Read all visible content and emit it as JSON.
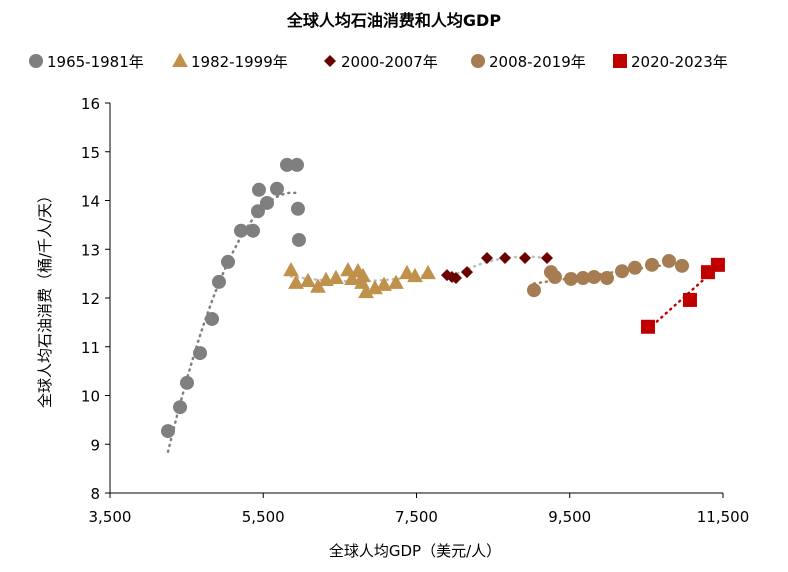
{
  "chart_data": {
    "type": "scatter",
    "title": "全球人均石油消费和人均GDP",
    "xlabel": "全球人均GDP（美元/人）",
    "ylabel": "全球人均石油消费（桶/千人/天）",
    "xlim": [
      3500,
      11500
    ],
    "ylim": [
      8,
      16
    ],
    "xticks": [
      3500,
      5500,
      7500,
      9500,
      11500
    ],
    "xtick_labels": [
      "3,500",
      "5,500",
      "7,500",
      "9,500",
      "11,500"
    ],
    "yticks": [
      8,
      9,
      10,
      11,
      12,
      13,
      14,
      15,
      16
    ],
    "grid": false,
    "legend": "top",
    "series": [
      {
        "name": "1965-1981年",
        "marker": "circle",
        "color": "#7f7f7f",
        "trend_color": "#7f7f7f",
        "points": [
          [
            4257,
            9.27
          ],
          [
            4414,
            9.76
          ],
          [
            4505,
            10.26
          ],
          [
            4675,
            10.87
          ],
          [
            4831,
            11.57
          ],
          [
            4922,
            12.33
          ],
          [
            5040,
            12.74
          ],
          [
            5210,
            13.38
          ],
          [
            5366,
            13.38
          ],
          [
            5431,
            13.78
          ],
          [
            5444,
            14.22
          ],
          [
            5549,
            13.95
          ],
          [
            5679,
            14.24
          ],
          [
            5810,
            14.73
          ],
          [
            5940,
            14.73
          ],
          [
            5953,
            13.83
          ],
          [
            5966,
            13.19
          ]
        ]
      },
      {
        "name": "1982-1999年",
        "marker": "triangle",
        "color": "#c0914a",
        "trend_color": "#bfbfbf",
        "points": [
          [
            5862,
            12.57
          ],
          [
            5927,
            12.31
          ],
          [
            6084,
            12.35
          ],
          [
            6214,
            12.23
          ],
          [
            6319,
            12.37
          ],
          [
            6449,
            12.41
          ],
          [
            6606,
            12.57
          ],
          [
            6658,
            12.39
          ],
          [
            6736,
            12.55
          ],
          [
            6789,
            12.31
          ],
          [
            6802,
            12.45
          ],
          [
            6841,
            12.12
          ],
          [
            6958,
            12.2
          ],
          [
            7076,
            12.27
          ],
          [
            7232,
            12.31
          ],
          [
            7376,
            12.51
          ],
          [
            7480,
            12.45
          ],
          [
            7650,
            12.51
          ]
        ]
      },
      {
        "name": "2000-2007年",
        "marker": "diamond",
        "color": "#6b0000",
        "trend_color": "#bfbfbf",
        "points": [
          [
            7898,
            12.47
          ],
          [
            7963,
            12.43
          ],
          [
            8015,
            12.41
          ],
          [
            8159,
            12.53
          ],
          [
            8420,
            12.82
          ],
          [
            8655,
            12.82
          ],
          [
            8916,
            12.82
          ],
          [
            9203,
            12.82
          ]
        ]
      },
      {
        "name": "2008-2019年",
        "marker": "circle",
        "color": "#a67c52",
        "trend_color": "#a67c52",
        "points": [
          [
            9033,
            12.16
          ],
          [
            9255,
            12.53
          ],
          [
            9307,
            12.43
          ],
          [
            9516,
            12.39
          ],
          [
            9673,
            12.41
          ],
          [
            9816,
            12.43
          ],
          [
            9986,
            12.41
          ],
          [
            10182,
            12.55
          ],
          [
            10351,
            12.62
          ],
          [
            10573,
            12.68
          ],
          [
            10795,
            12.76
          ],
          [
            10965,
            12.66
          ]
        ]
      },
      {
        "name": "2020-2023年",
        "marker": "square",
        "color": "#c00000",
        "trend_color": "#c00000",
        "points": [
          [
            10521,
            11.41
          ],
          [
            11069,
            11.96
          ],
          [
            11304,
            12.53
          ],
          [
            11434,
            12.68
          ]
        ]
      }
    ]
  }
}
